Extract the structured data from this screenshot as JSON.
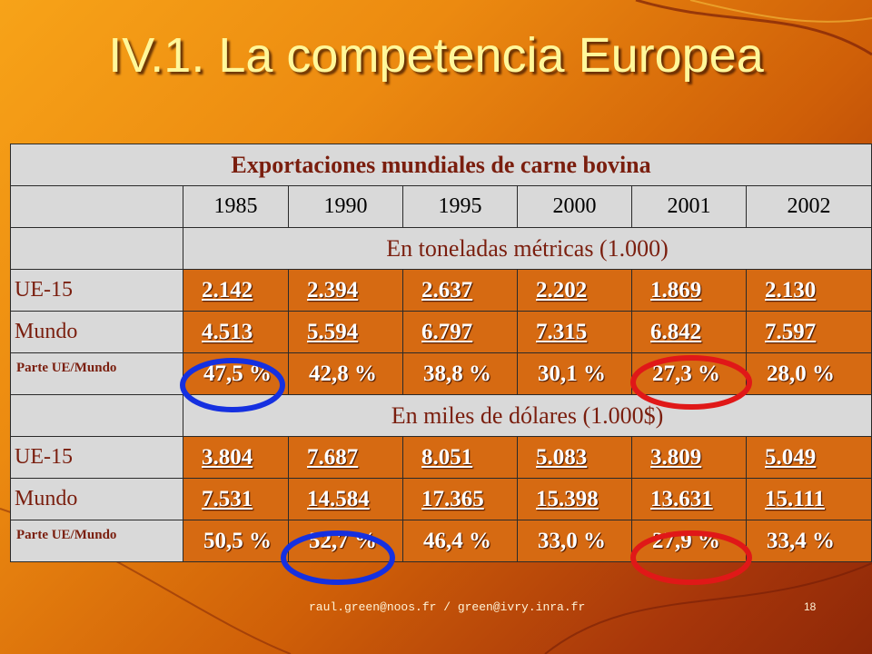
{
  "slide": {
    "title": "IV.1. La competencia Europea",
    "footer": "raul.green@noos.fr / green@ivry.inra.fr",
    "page_number": "18"
  },
  "table": {
    "caption": "Exportaciones mundiales de carne bovina",
    "years": [
      "1985",
      "1990",
      "1995",
      "2000",
      "2001",
      "2002"
    ],
    "section1": {
      "unit": "En toneladas métricas (1.000)",
      "rows": [
        {
          "label": "UE-15",
          "values": [
            "2.142",
            "2.394",
            "2.637",
            "2.202",
            "1.869",
            "2.130"
          ]
        },
        {
          "label": "Mundo",
          "values": [
            "4.513",
            "5.594",
            "6.797",
            "7.315",
            "6.842",
            "7.597"
          ]
        },
        {
          "label": "Parte UE/Mundo",
          "values": [
            "47,5 %",
            "42,8 %",
            "38,8 %",
            "30,1 %",
            "27,3 %",
            "28,0 %"
          ]
        }
      ]
    },
    "section2": {
      "unit": "En miles de dólares (1.000$)",
      "rows": [
        {
          "label": "UE-15",
          "values": [
            "3.804",
            "7.687",
            "8.051",
            "5.083",
            "3.809",
            "5.049"
          ]
        },
        {
          "label": "Mundo",
          "values": [
            "7.531",
            "14.584",
            "17.365",
            "15.398",
            "13.631",
            "15.111"
          ]
        },
        {
          "label": "Parte UE/Mundo",
          "values": [
            "50,5 %",
            "52,7 %",
            "46,4 %",
            "33,0 %",
            "27,9 %",
            "33,4 %"
          ]
        }
      ]
    }
  },
  "colors": {
    "circle_blue": "#1530e0",
    "circle_red": "#e01818"
  }
}
